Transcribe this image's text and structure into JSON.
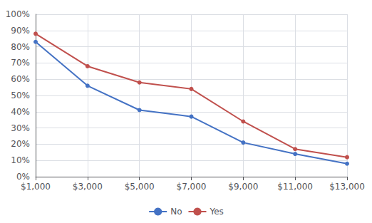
{
  "chart_data": {
    "type": "line",
    "x": [
      1000,
      3000,
      5000,
      7000,
      9000,
      11000,
      13000
    ],
    "series": [
      {
        "name": "No",
        "color": "#4472C4",
        "values": [
          0.83,
          0.56,
          0.41,
          0.37,
          0.21,
          0.14,
          0.08
        ]
      },
      {
        "name": "Yes",
        "color": "#C0504D",
        "values": [
          0.88,
          0.68,
          0.58,
          0.54,
          0.34,
          0.17,
          0.12
        ]
      }
    ],
    "xlim": [
      1000,
      13000
    ],
    "xticks": [
      {
        "value": 1000,
        "label": "$1,000"
      },
      {
        "value": 3000,
        "label": "$3,000"
      },
      {
        "value": 5000,
        "label": "$5,000"
      },
      {
        "value": 7000,
        "label": "$7,000"
      },
      {
        "value": 9000,
        "label": "$9,000"
      },
      {
        "value": 11000,
        "label": "$11,000"
      },
      {
        "value": 13000,
        "label": "$13,000"
      }
    ],
    "ylim": [
      0.0,
      1.0
    ],
    "yticks": [
      {
        "value": 0.0,
        "label": "0%"
      },
      {
        "value": 0.1,
        "label": "10%"
      },
      {
        "value": 0.2,
        "label": "20%"
      },
      {
        "value": 0.3,
        "label": "30%"
      },
      {
        "value": 0.4,
        "label": "40%"
      },
      {
        "value": 0.5,
        "label": "50%"
      },
      {
        "value": 0.6,
        "label": "60%"
      },
      {
        "value": 0.7,
        "label": "70%"
      },
      {
        "value": 0.8,
        "label": "80%"
      },
      {
        "value": 0.9,
        "label": "90%"
      },
      {
        "value": 1.0,
        "label": "100%"
      }
    ],
    "grid": true,
    "legend": "bottom",
    "marker": "circle"
  }
}
